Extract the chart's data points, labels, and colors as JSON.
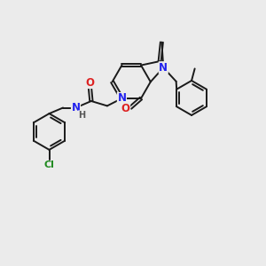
{
  "background_color": "#ebebeb",
  "bond_color": "#1a1a1a",
  "bond_width": 1.4,
  "atom_colors": {
    "N": "#2222ee",
    "O": "#dd2222",
    "Cl": "#228B22",
    "H": "#555555",
    "C": "#1a1a1a"
  },
  "font_size_atom": 8.5,
  "font_size_h": 7.0
}
